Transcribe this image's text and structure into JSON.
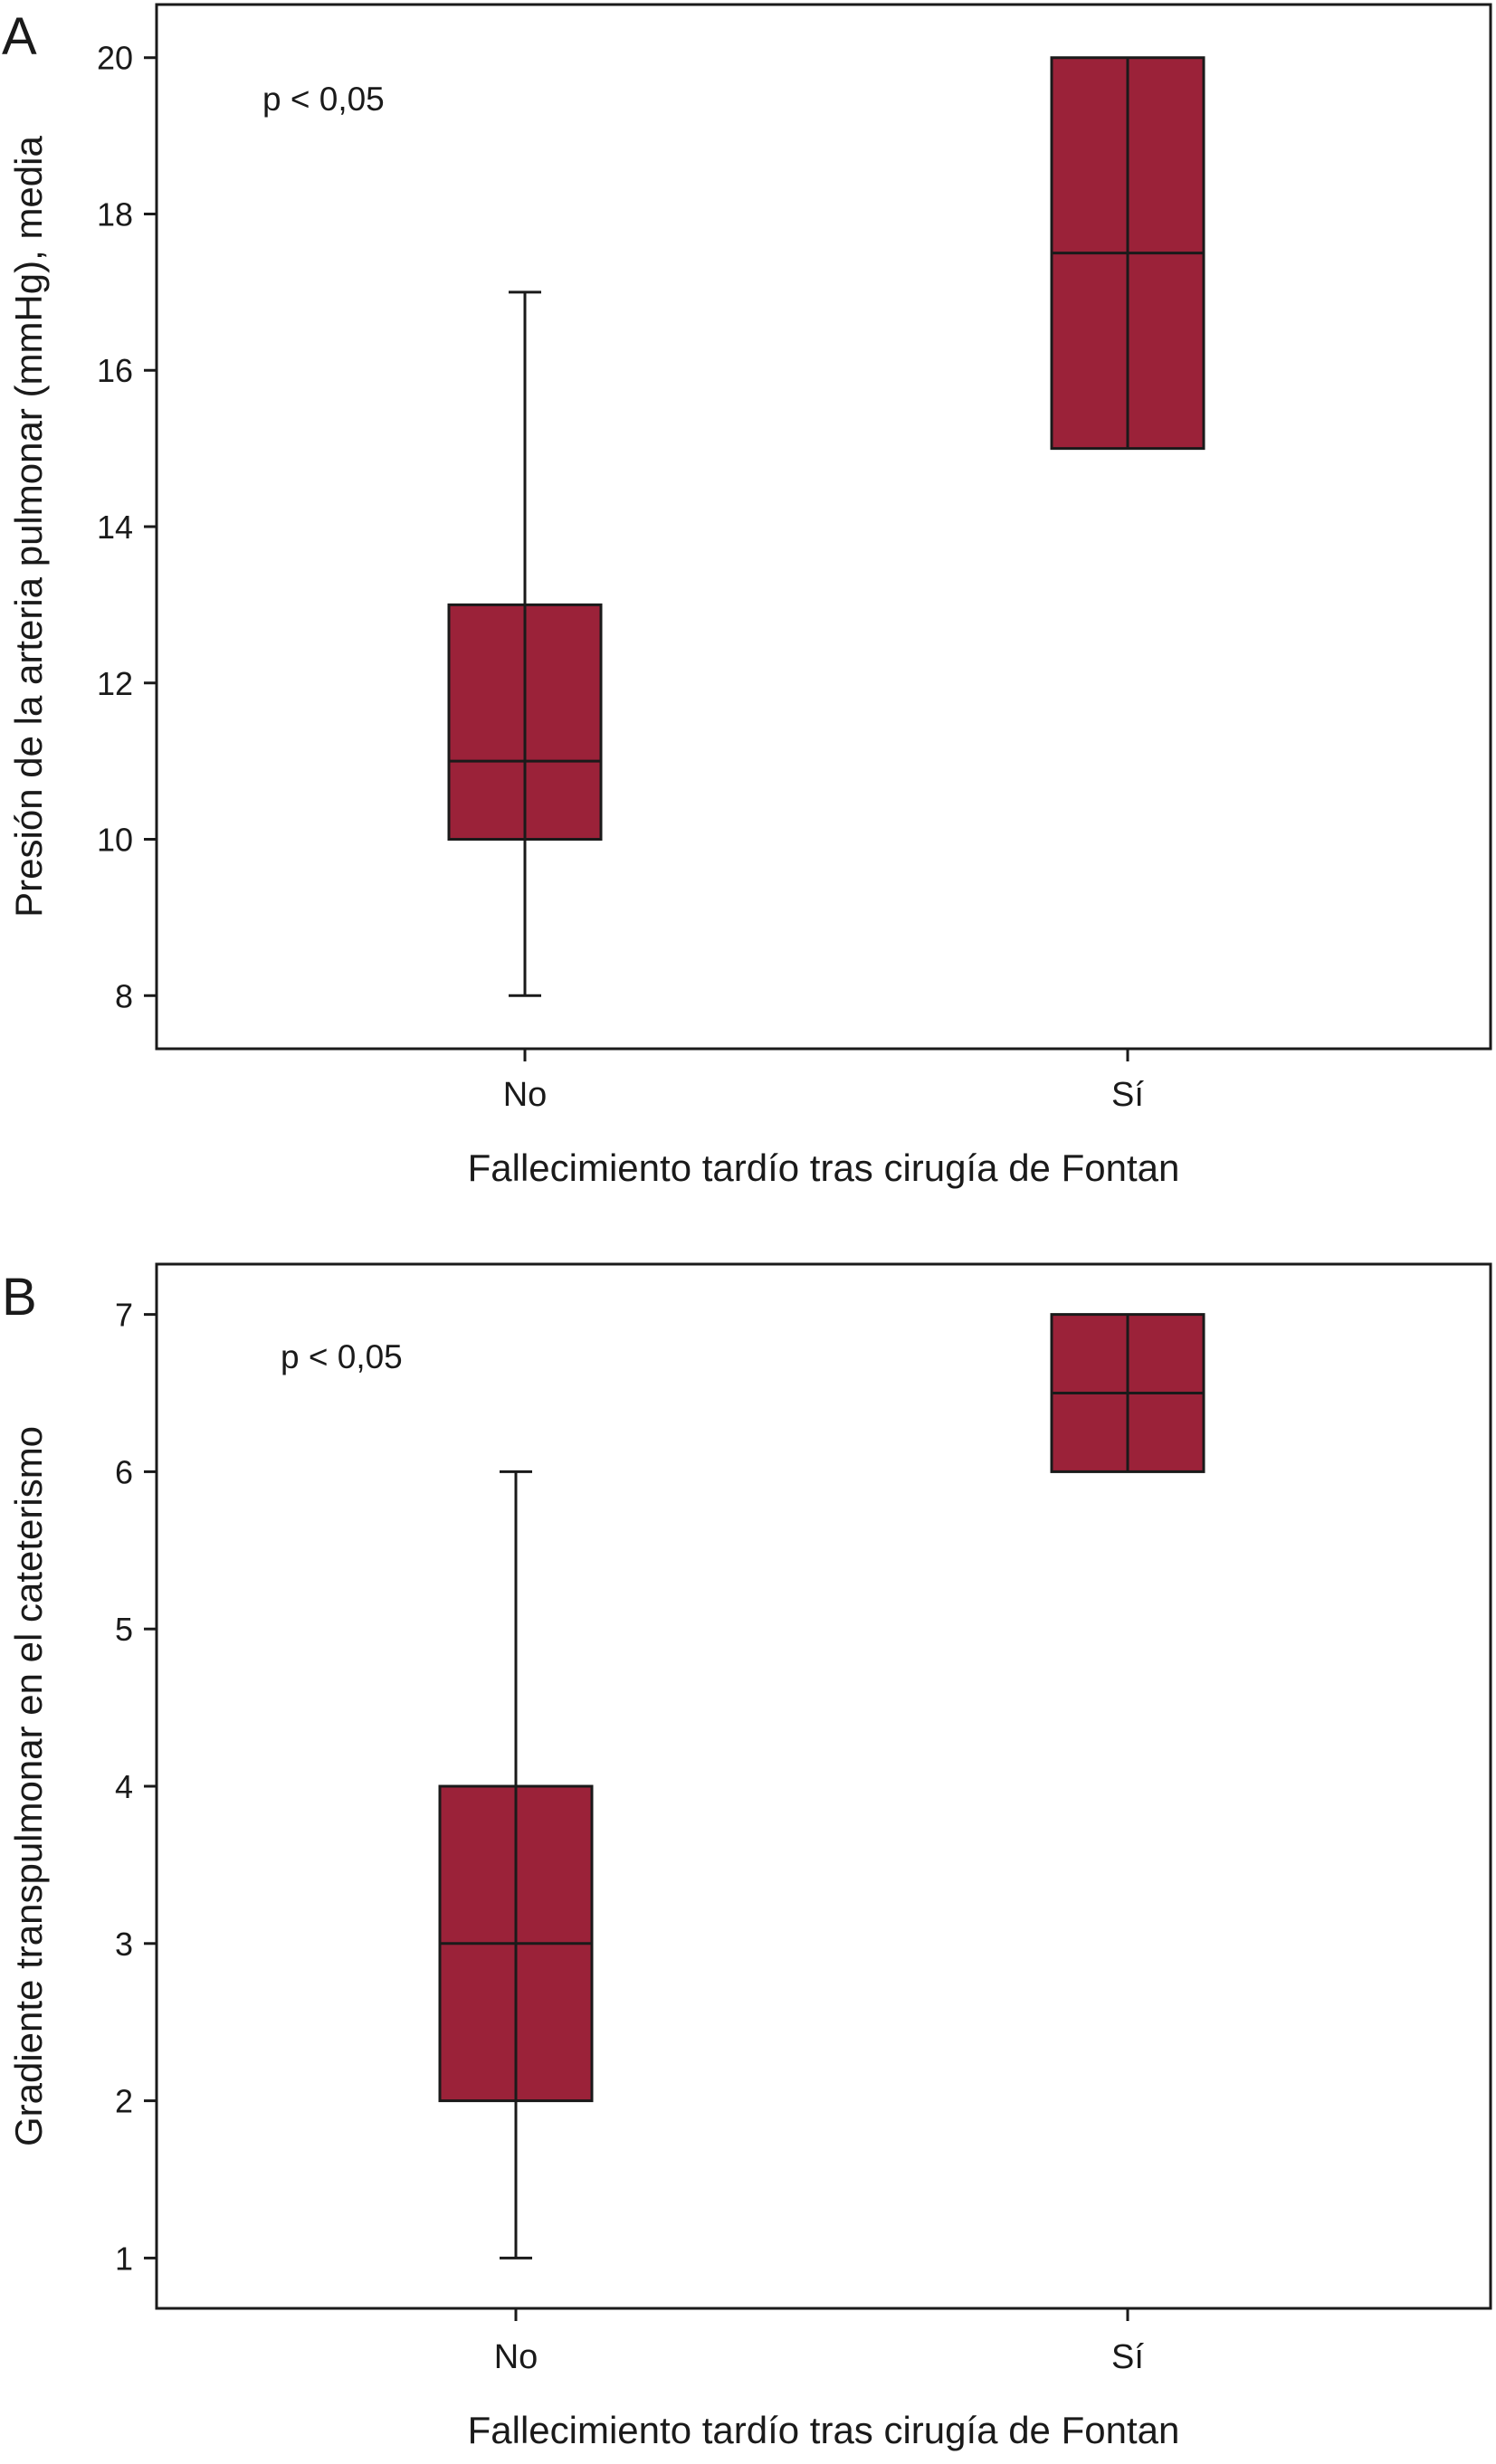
{
  "colors": {
    "box_fill": "#9B2239",
    "box_stroke": "#1a1a1a",
    "axis": "#1a1a1a",
    "background": "#ffffff"
  },
  "chart_data": [
    {
      "type": "box",
      "panel_label": "A",
      "annotation": "p < 0,05",
      "title": "",
      "xlabel": "Fallecimiento tardío tras cirugía de Fontan",
      "ylabel": "Presión de la arteria pulmonar (mmHg), media",
      "categories": [
        "No",
        "Sí"
      ],
      "yticks": [
        8,
        10,
        12,
        14,
        16,
        18,
        20
      ],
      "ylim": [
        7.32,
        20.68
      ],
      "boxes": [
        {
          "category": "No",
          "whisker_low": 8,
          "q1": 10,
          "median": 11,
          "q3": 13,
          "whisker_high": 17
        },
        {
          "category": "Sí",
          "whisker_low": 15,
          "q1": 15,
          "median": 17.5,
          "q3": 20,
          "whisker_high": 20
        }
      ],
      "grid": false,
      "legend": "none"
    },
    {
      "type": "box",
      "panel_label": "B",
      "annotation": "p < 0,05",
      "title": "",
      "xlabel": "Fallecimiento tardío tras cirugía de Fontan",
      "ylabel": "Gradiente transpulmonar en el cateterismo",
      "categories": [
        "No",
        "Sí"
      ],
      "yticks": [
        1,
        2,
        3,
        4,
        5,
        6,
        7
      ],
      "ylim": [
        0.68,
        7.32
      ],
      "boxes": [
        {
          "category": "No",
          "whisker_low": 1,
          "q1": 2,
          "median": 3,
          "q3": 4,
          "whisker_high": 6
        },
        {
          "category": "Sí",
          "whisker_low": 6,
          "q1": 6,
          "median": 6.5,
          "q3": 7,
          "whisker_high": 7
        }
      ],
      "grid": false,
      "legend": "none"
    }
  ]
}
